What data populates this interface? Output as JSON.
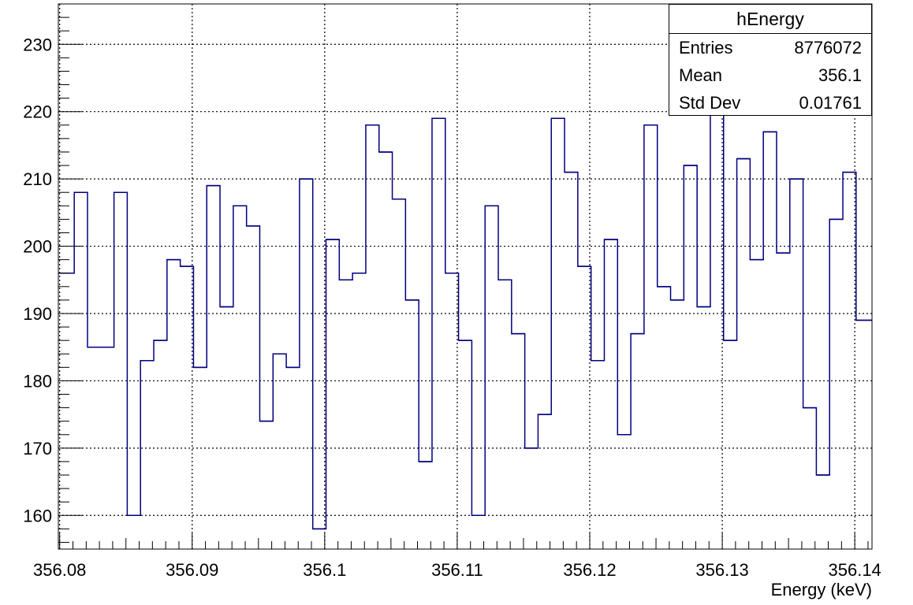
{
  "chart_data": {
    "type": "histogram",
    "xlabel": "Energy (keV)",
    "ylabel": "",
    "xlim": [
      356.0799,
      356.1413
    ],
    "ylim": [
      155,
      236
    ],
    "grid": true,
    "line_color": "#00007f",
    "x_ticks": [
      "356.08",
      "356.09",
      "356.1",
      "356.11",
      "356.12",
      "356.13",
      "356.14"
    ],
    "y_ticks": [
      "160",
      "170",
      "180",
      "190",
      "200",
      "210",
      "220",
      "230"
    ],
    "bin_edges": [
      356.0799,
      356.0811,
      356.0821,
      356.0841,
      356.0851,
      356.0861,
      356.0871,
      356.0881,
      356.0891,
      356.0901,
      356.0911,
      356.0921,
      356.0931,
      356.0941,
      356.0951,
      356.0961,
      356.0971,
      356.0981,
      356.0991,
      356.1001,
      356.1011,
      356.1021,
      356.1031,
      356.1041,
      356.1051,
      356.1061,
      356.1071,
      356.1081,
      356.1091,
      356.1101,
      356.1111,
      356.1121,
      356.1131,
      356.1141,
      356.1151,
      356.1161,
      356.1171,
      356.1181,
      356.1191,
      356.1201,
      356.1211,
      356.1221,
      356.1231,
      356.1241,
      356.1251,
      356.1261,
      356.1271,
      356.1281,
      356.1291,
      356.1301,
      356.1311,
      356.1321,
      356.1331,
      356.1341,
      356.1351,
      356.1361,
      356.1371,
      356.1381,
      356.1391,
      356.1401,
      356.1413
    ],
    "values": [
      196,
      208,
      185,
      208,
      160,
      183,
      186,
      198,
      197,
      182,
      209,
      191,
      206,
      203,
      174,
      184,
      182,
      210,
      158,
      201,
      195,
      196,
      218,
      214,
      207,
      192,
      168,
      219,
      196,
      186,
      160,
      206,
      195,
      187,
      170,
      175,
      219,
      211,
      197,
      183,
      201,
      172,
      187,
      218,
      194,
      192,
      212,
      191,
      240,
      186,
      213,
      198,
      217,
      199,
      210,
      176,
      166,
      204,
      211,
      189
    ]
  },
  "stats": {
    "title": "hEnergy",
    "rows": [
      {
        "label": "Entries",
        "value": "8776072"
      },
      {
        "label": "Mean",
        "value": "356.1"
      },
      {
        "label": "Std Dev",
        "value": "0.01761"
      }
    ]
  }
}
